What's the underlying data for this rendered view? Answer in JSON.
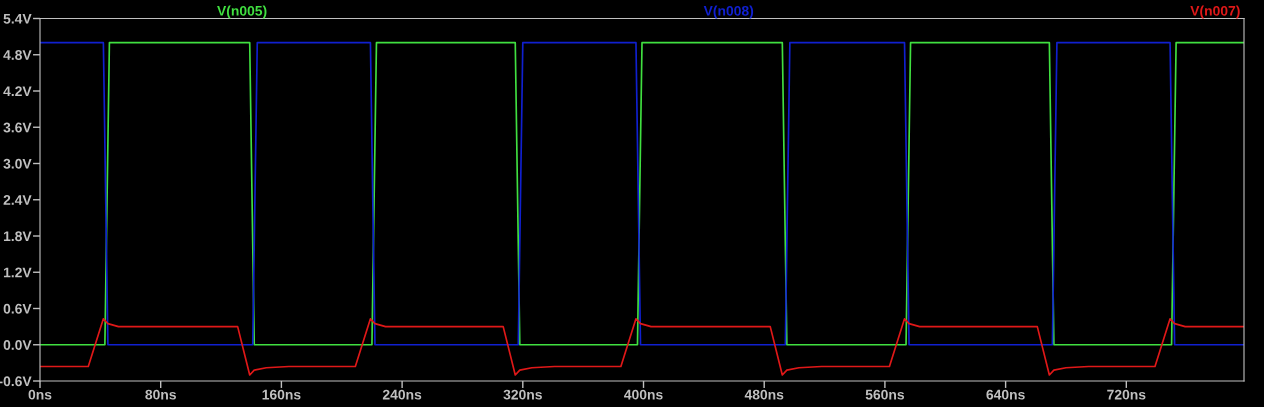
{
  "chart_data": {
    "type": "line",
    "xlim": [
      0,
      798
    ],
    "ylim": [
      -0.6,
      5.4
    ],
    "xticks": [
      {
        "value": 0,
        "label": "0ns"
      },
      {
        "value": 80,
        "label": "80ns"
      },
      {
        "value": 160,
        "label": "160ns"
      },
      {
        "value": 240,
        "label": "240ns"
      },
      {
        "value": 320,
        "label": "320ns"
      },
      {
        "value": 400,
        "label": "400ns"
      },
      {
        "value": 480,
        "label": "480ns"
      },
      {
        "value": 560,
        "label": "560ns"
      },
      {
        "value": 640,
        "label": "640ns"
      },
      {
        "value": 720,
        "label": "720ns"
      }
    ],
    "yticks": [
      {
        "value": -0.6,
        "label": "-0.6V"
      },
      {
        "value": 0.0,
        "label": "0.0V"
      },
      {
        "value": 0.6,
        "label": "0.6V"
      },
      {
        "value": 1.2,
        "label": "1.2V"
      },
      {
        "value": 1.8,
        "label": "1.8V"
      },
      {
        "value": 2.4,
        "label": "2.4V"
      },
      {
        "value": 3.0,
        "label": "3.0V"
      },
      {
        "value": 3.6,
        "label": "3.6V"
      },
      {
        "value": 4.2,
        "label": "4.2V"
      },
      {
        "value": 4.8,
        "label": "4.8V"
      },
      {
        "value": 5.4,
        "label": "5.4V"
      }
    ],
    "grid": false,
    "legend": "top",
    "marker": "none",
    "line_style": "solid",
    "series": [
      {
        "name": "V(n005)",
        "color": "#40e040",
        "x": [
          0,
          43,
          46,
          139,
          142,
          220,
          223,
          315,
          318,
          396,
          399,
          492,
          495,
          574,
          577,
          669,
          672,
          750,
          753,
          798
        ],
        "values": [
          0,
          0,
          5,
          5,
          0,
          0,
          5,
          5,
          0,
          0,
          5,
          5,
          0,
          0,
          5,
          5,
          0,
          0,
          5,
          5
        ]
      },
      {
        "name": "V(n008)",
        "color": "#1020d0",
        "x": [
          0,
          42,
          45,
          141,
          144,
          219,
          222,
          317,
          320,
          395,
          398,
          494,
          497,
          573,
          576,
          671,
          674,
          749,
          752,
          798
        ],
        "values": [
          5,
          5,
          0,
          0,
          5,
          5,
          0,
          0,
          5,
          5,
          0,
          0,
          5,
          5,
          0,
          0,
          5,
          5,
          0,
          0
        ]
      },
      {
        "name": "V(n007)",
        "color": "#e01818",
        "x": [
          0,
          32,
          42,
          45,
          52,
          131,
          139,
          142,
          150,
          165,
          209,
          219,
          222,
          229,
          307,
          315,
          318,
          326,
          341,
          385,
          395,
          398,
          405,
          484,
          492,
          495,
          503,
          518,
          563,
          573,
          576,
          583,
          661,
          669,
          672,
          680,
          695,
          739,
          749,
          752,
          759,
          798
        ],
        "values": [
          -0.36,
          -0.36,
          0.43,
          0.35,
          0.3,
          0.3,
          -0.5,
          -0.42,
          -0.38,
          -0.36,
          -0.36,
          0.43,
          0.35,
          0.3,
          0.3,
          -0.5,
          -0.42,
          -0.38,
          -0.36,
          -0.36,
          0.43,
          0.35,
          0.3,
          0.3,
          -0.5,
          -0.42,
          -0.38,
          -0.36,
          -0.36,
          0.43,
          0.35,
          0.3,
          0.3,
          -0.5,
          -0.42,
          -0.38,
          -0.36,
          -0.36,
          0.43,
          0.35,
          0.3,
          0.3
        ]
      }
    ]
  }
}
